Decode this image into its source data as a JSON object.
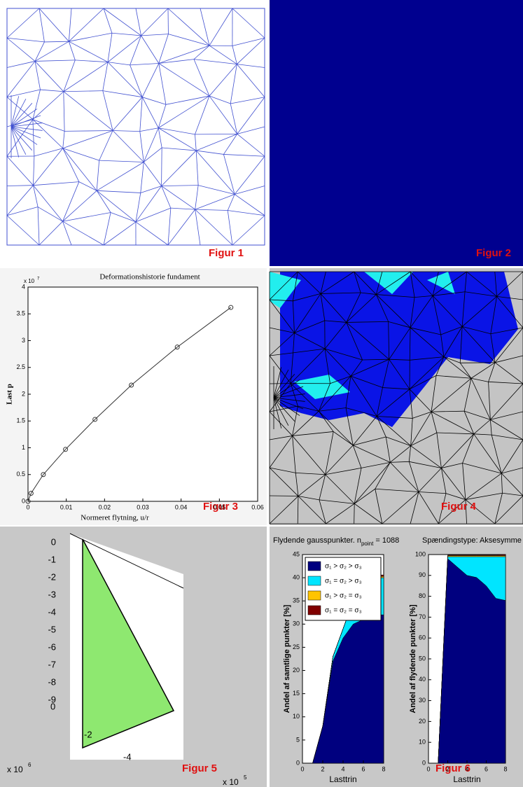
{
  "figures": [
    "Figur 1",
    "Figur 2",
    "Figur 3",
    "Figur 4",
    "Figur 5",
    "Figur 6"
  ],
  "figure5": {
    "zticks": [
      0,
      -1,
      -2,
      -3,
      -4,
      -5,
      -6,
      -7,
      -8,
      -9
    ],
    "zexponent": {
      "base": "x 10",
      "power": "6"
    },
    "yticks": [
      0,
      -2,
      -4
    ],
    "yexponent": {
      "base": "x 10",
      "power": "5"
    }
  },
  "chart_data": [
    {
      "type": "line",
      "title": "Deformationshistorie fundament",
      "x_label": "Normeret flytning, u/r",
      "y_label": "Last p",
      "y_exponent": {
        "base": "x 10",
        "power": "7"
      },
      "x": [
        0,
        0.0008,
        0.004,
        0.0098,
        0.0175,
        0.027,
        0.039,
        0.053
      ],
      "series": [
        {
          "color": "#333333",
          "values": [
            0,
            0.15,
            0.5,
            0.97,
            1.53,
            2.17,
            2.88,
            3.62
          ]
        }
      ],
      "xlim": [
        0,
        0.06
      ],
      "xticks": [
        0,
        0.01,
        0.02,
        0.03,
        0.04,
        0.05,
        0.06
      ],
      "ylim": [
        0,
        4
      ],
      "yticks": [
        0,
        0.5,
        1,
        1.5,
        2,
        2.5,
        3,
        3.5,
        4
      ]
    },
    {
      "type": "stacked-area",
      "title": "Flydende gausspunkter. n",
      "title_subscript": "point",
      "title_suffix": "= 1088",
      "x_label": "Lasttrin",
      "y_label": "Andel af samtlige punkter [%]",
      "legend": "upper left",
      "x": [
        1,
        2,
        3,
        4,
        5,
        6,
        7,
        8
      ],
      "series": [
        {
          "name": "σ₁ > σ₂ > σ₃",
          "color": "#00007f",
          "values": [
            0,
            8,
            22,
            27,
            30,
            31,
            32,
            32
          ]
        },
        {
          "name": "σ₁ = σ₂ > σ₃",
          "color": "#00e5ff",
          "values": [
            0,
            0,
            1,
            2,
            5,
            7,
            8,
            8
          ]
        },
        {
          "name": "σ₁ > σ₂ = σ₃",
          "color": "#ffc400",
          "values": [
            0,
            0,
            0,
            0,
            0,
            0,
            0.3,
            0.3
          ]
        },
        {
          "name": "σ₁ = σ₂ = σ₃",
          "color": "#800000",
          "values": [
            0,
            0,
            0,
            0,
            0,
            0,
            0.3,
            0.3
          ]
        }
      ],
      "xlim": [
        0,
        8
      ],
      "xticks": [
        0,
        2,
        4,
        6,
        8
      ],
      "ylim": [
        0,
        45
      ],
      "yticks": [
        0,
        5,
        10,
        15,
        20,
        25,
        30,
        35,
        40,
        45
      ]
    },
    {
      "type": "stacked-area",
      "title": "Spændingstype: Aksesymme",
      "x_label": "Lasttrin",
      "y_label": "Andel af flydende punkter [%]",
      "x": [
        1,
        2,
        3,
        4,
        5,
        6,
        7,
        8
      ],
      "series": [
        {
          "color": "#00007f",
          "values": [
            0,
            98,
            94,
            90,
            89,
            85,
            79,
            78
          ]
        },
        {
          "color": "#00e5ff",
          "values": [
            0,
            1,
            5,
            9,
            10,
            14,
            20,
            21
          ]
        },
        {
          "color": "#ffc400",
          "values": [
            0,
            0.5,
            0.5,
            0.5,
            0.5,
            0.5,
            0.5,
            0.5
          ]
        },
        {
          "color": "#800000",
          "values": [
            0,
            0.3,
            0.3,
            0.3,
            0.3,
            0.3,
            0.3,
            0.5
          ]
        }
      ],
      "xlim": [
        0,
        8
      ],
      "xticks": [
        0,
        2,
        4,
        6,
        8
      ],
      "ylim": [
        0,
        100
      ],
      "yticks": [
        0,
        10,
        20,
        30,
        40,
        50,
        60,
        70,
        80,
        90,
        100
      ]
    }
  ]
}
